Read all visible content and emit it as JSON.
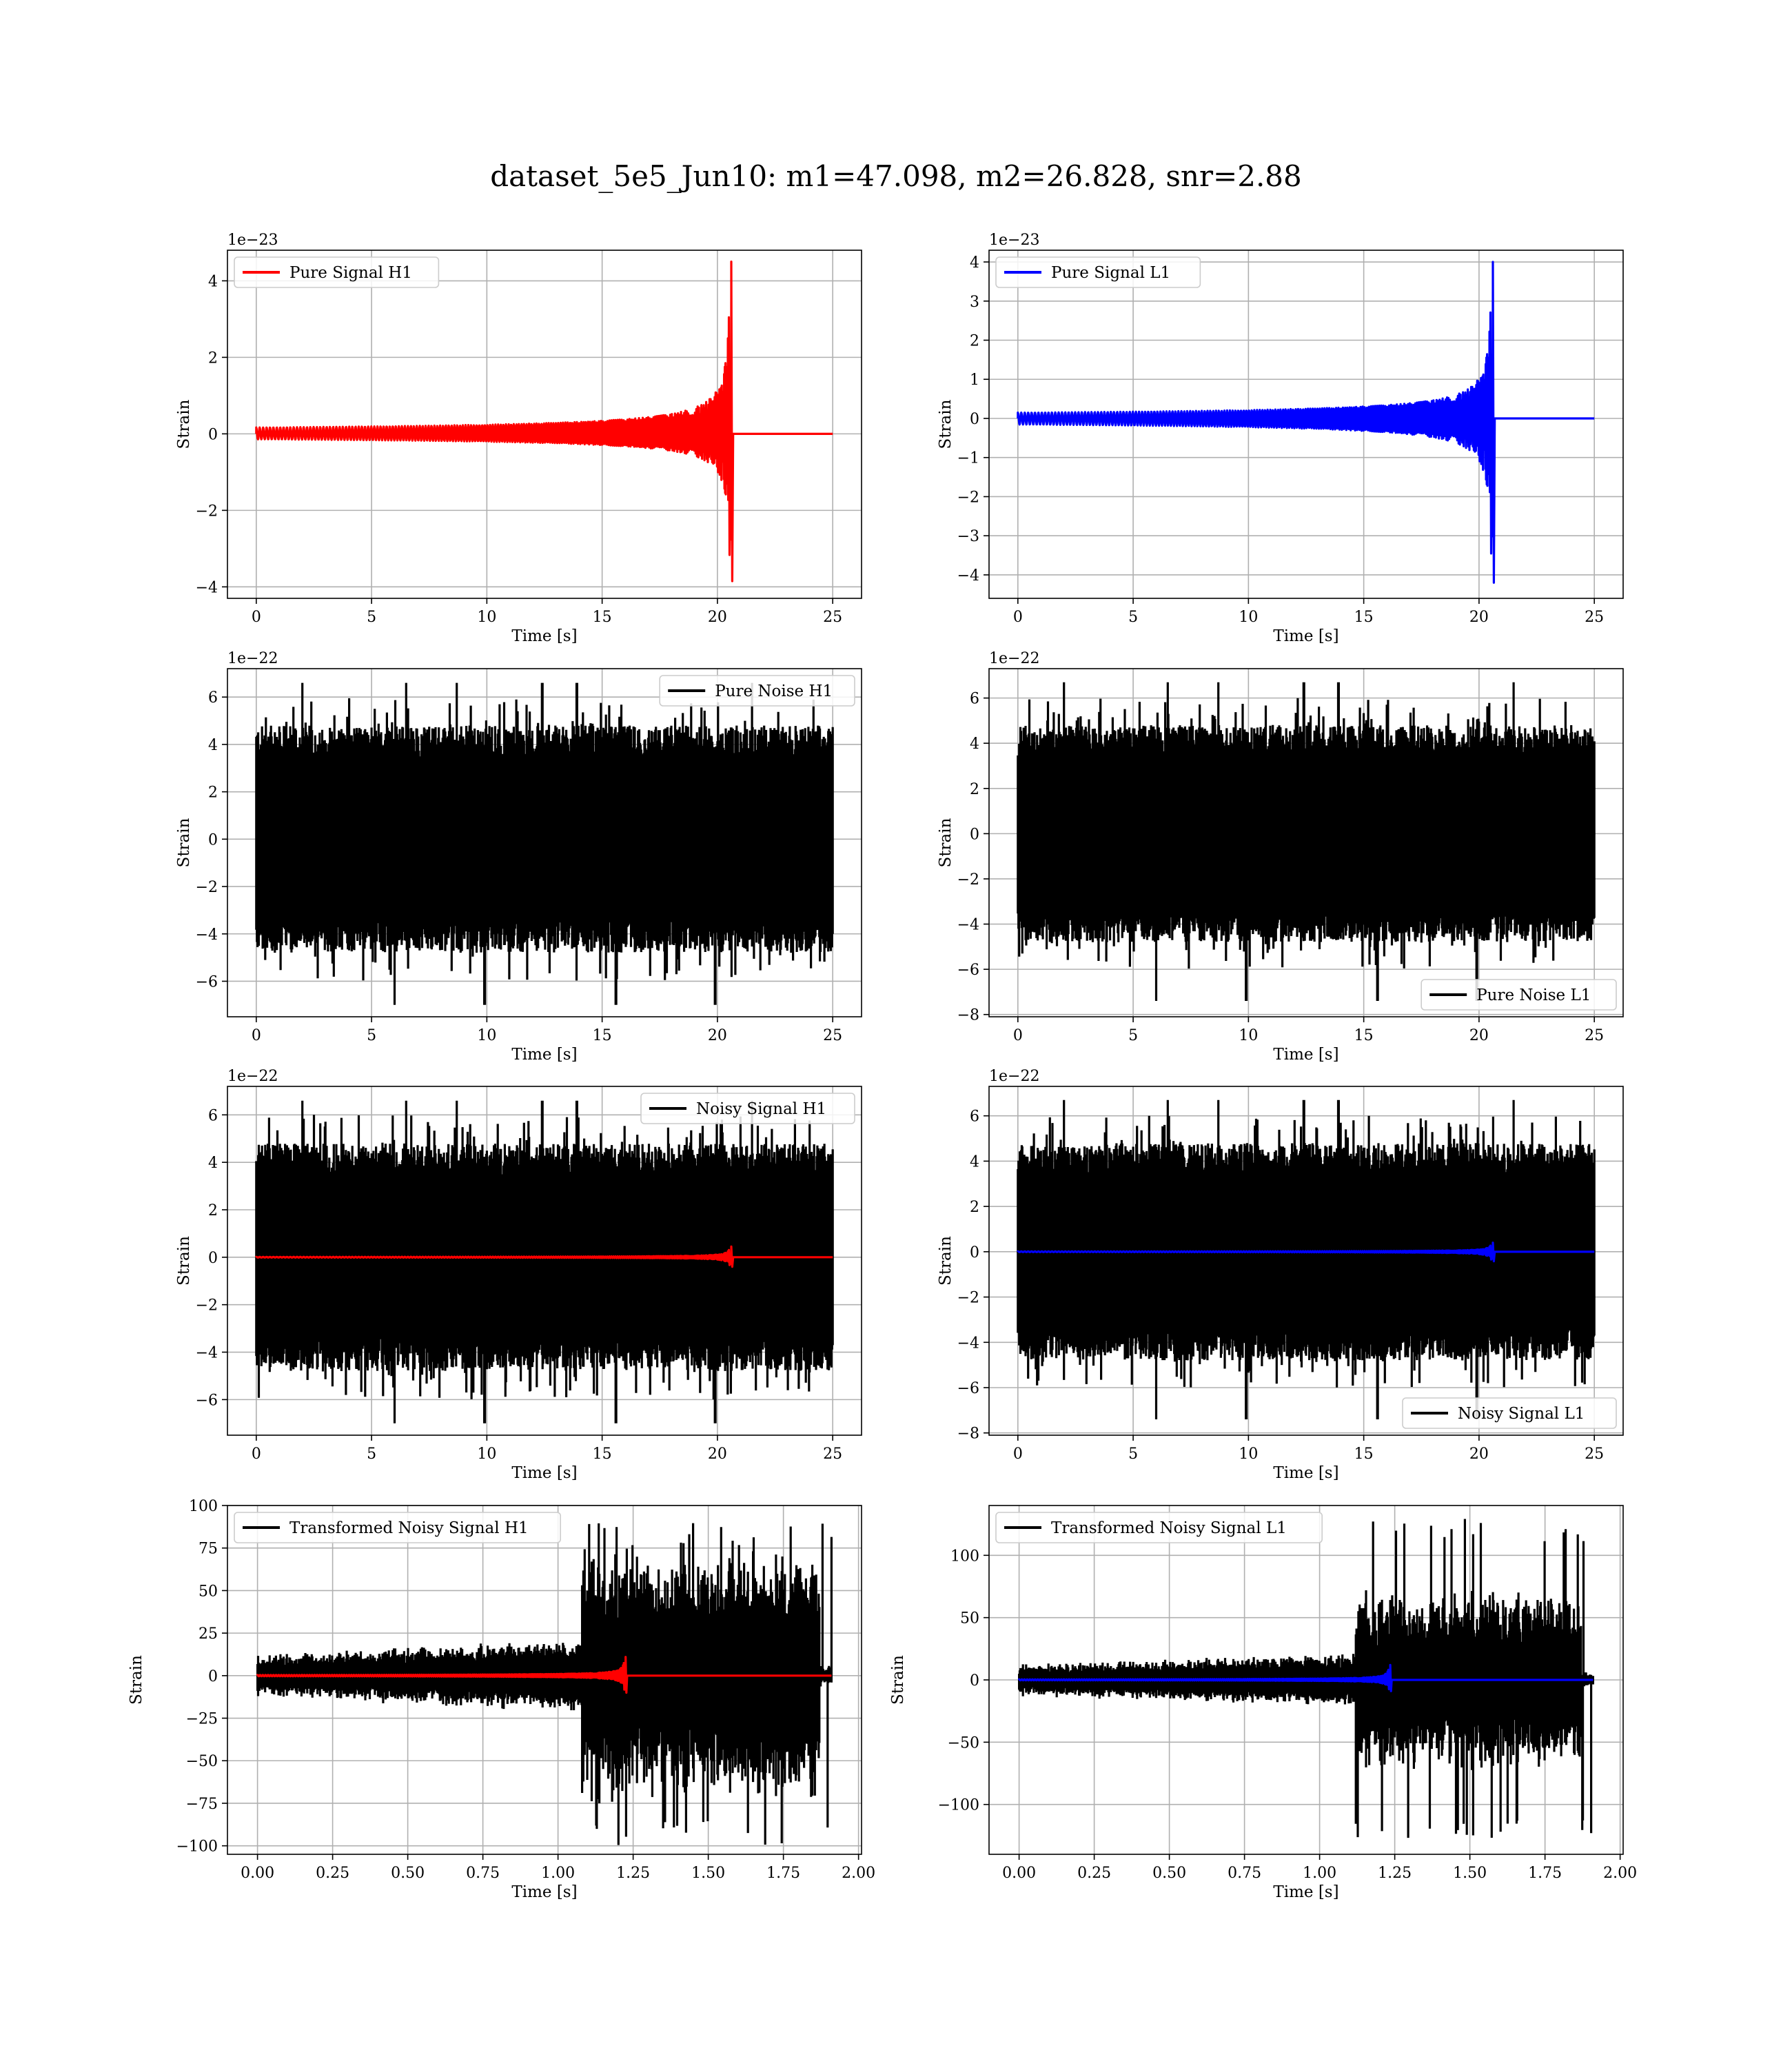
{
  "figure_title": "dataset_5e5_Jun10: m1=47.098, m2=26.828, snr=2.88",
  "chart_data": [
    {
      "type": "line",
      "id": "pure-signal-h1",
      "xlabel": "Time [s]",
      "ylabel": "Strain",
      "offset_text": "1e−23",
      "xlim": [
        -1.25,
        26.25
      ],
      "ylim": [
        -4.3,
        4.8
      ],
      "xticks": [
        0,
        5,
        10,
        15,
        20,
        25
      ],
      "xtick_labels": [
        "0",
        "5",
        "10",
        "15",
        "20",
        "25"
      ],
      "yticks": [
        -4,
        -2,
        0,
        2,
        4
      ],
      "ytick_labels": [
        "−4",
        "−2",
        "0",
        "2",
        "4"
      ],
      "grid": true,
      "legend": {
        "placement": "upper left"
      },
      "series": [
        {
          "name": "Pure Signal H1",
          "color": "#ff0000",
          "kind": "chirp",
          "t_start": 0,
          "t_end": 25,
          "t_merge": 20.6,
          "peak_pos": 4.5,
          "peak_neg": -3.85
        }
      ]
    },
    {
      "type": "line",
      "id": "pure-signal-l1",
      "xlabel": "Time [s]",
      "ylabel": "Strain",
      "offset_text": "1e−23",
      "xlim": [
        -1.25,
        26.25
      ],
      "ylim": [
        -4.6,
        4.3
      ],
      "xticks": [
        0,
        5,
        10,
        15,
        20,
        25
      ],
      "xtick_labels": [
        "0",
        "5",
        "10",
        "15",
        "20",
        "25"
      ],
      "yticks": [
        -4,
        -3,
        -2,
        -1,
        0,
        1,
        2,
        3,
        4
      ],
      "ytick_labels": [
        "−4",
        "−3",
        "−2",
        "−1",
        "0",
        "1",
        "2",
        "3",
        "4"
      ],
      "grid": true,
      "legend": {
        "placement": "upper left"
      },
      "series": [
        {
          "name": "Pure Signal L1",
          "color": "#0000ff",
          "kind": "chirp",
          "t_start": 0,
          "t_end": 25,
          "t_merge": 20.6,
          "peak_pos": 4.0,
          "peak_neg": -4.2
        }
      ]
    },
    {
      "type": "line",
      "id": "pure-noise-h1",
      "xlabel": "Time [s]",
      "ylabel": "Strain",
      "offset_text": "1e−22",
      "xlim": [
        -1.25,
        26.25
      ],
      "ylim": [
        -7.5,
        7.2
      ],
      "xticks": [
        0,
        5,
        10,
        15,
        20,
        25
      ],
      "xtick_labels": [
        "0",
        "5",
        "10",
        "15",
        "20",
        "25"
      ],
      "yticks": [
        -6,
        -4,
        -2,
        0,
        2,
        4,
        6
      ],
      "ytick_labels": [
        "−6",
        "−4",
        "−2",
        "0",
        "2",
        "4",
        "6"
      ],
      "grid": true,
      "legend": {
        "placement": "upper right"
      },
      "series": [
        {
          "name": "Pure Noise H1",
          "color": "#000000",
          "kind": "noise",
          "t_start": 0,
          "t_end": 25,
          "max": 6.6,
          "min": -7.0
        }
      ]
    },
    {
      "type": "line",
      "id": "pure-noise-l1",
      "xlabel": "Time [s]",
      "ylabel": "Strain",
      "offset_text": "1e−22",
      "xlim": [
        -1.25,
        26.25
      ],
      "ylim": [
        -8.1,
        7.3
      ],
      "xticks": [
        0,
        5,
        10,
        15,
        20,
        25
      ],
      "xtick_labels": [
        "0",
        "5",
        "10",
        "15",
        "20",
        "25"
      ],
      "yticks": [
        -8,
        -6,
        -4,
        -2,
        0,
        2,
        4,
        6
      ],
      "ytick_labels": [
        "−8",
        "−6",
        "−4",
        "−2",
        "0",
        "2",
        "4",
        "6"
      ],
      "grid": true,
      "legend": {
        "placement": "lower right"
      },
      "series": [
        {
          "name": "Pure Noise L1",
          "color": "#000000",
          "kind": "noise",
          "t_start": 0,
          "t_end": 25,
          "max": 6.7,
          "min": -7.4
        }
      ]
    },
    {
      "type": "line",
      "id": "noisy-signal-h1",
      "xlabel": "Time [s]",
      "ylabel": "Strain",
      "offset_text": "1e−22",
      "xlim": [
        -1.25,
        26.25
      ],
      "ylim": [
        -7.5,
        7.2
      ],
      "xticks": [
        0,
        5,
        10,
        15,
        20,
        25
      ],
      "xtick_labels": [
        "0",
        "5",
        "10",
        "15",
        "20",
        "25"
      ],
      "yticks": [
        -6,
        -4,
        -2,
        0,
        2,
        4,
        6
      ],
      "ytick_labels": [
        "−6",
        "−4",
        "−2",
        "0",
        "2",
        "4",
        "6"
      ],
      "grid": true,
      "legend": {
        "placement": "upper right"
      },
      "series": [
        {
          "name": "Noisy Signal H1",
          "color": "#000000",
          "kind": "noise",
          "t_start": 0,
          "t_end": 25,
          "max": 6.6,
          "min": -7.0
        },
        {
          "color": "#ff0000",
          "kind": "chirp",
          "t_start": 0,
          "t_end": 25,
          "t_merge": 20.6,
          "peak_pos": 0.45,
          "peak_neg": -0.4
        }
      ]
    },
    {
      "type": "line",
      "id": "noisy-signal-l1",
      "xlabel": "Time [s]",
      "ylabel": "Strain",
      "offset_text": "1e−22",
      "xlim": [
        -1.25,
        26.25
      ],
      "ylim": [
        -8.1,
        7.3
      ],
      "xticks": [
        0,
        5,
        10,
        15,
        20,
        25
      ],
      "xtick_labels": [
        "0",
        "5",
        "10",
        "15",
        "20",
        "25"
      ],
      "yticks": [
        -8,
        -6,
        -4,
        -2,
        0,
        2,
        4,
        6
      ],
      "ytick_labels": [
        "−8",
        "−6",
        "−4",
        "−2",
        "0",
        "2",
        "4",
        "6"
      ],
      "grid": true,
      "legend": {
        "placement": "lower right"
      },
      "series": [
        {
          "name": "Noisy Signal L1",
          "color": "#000000",
          "kind": "noise",
          "t_start": 0,
          "t_end": 25,
          "max": 6.7,
          "min": -7.4
        },
        {
          "color": "#0000ff",
          "kind": "chirp",
          "t_start": 0,
          "t_end": 25,
          "t_merge": 20.6,
          "peak_pos": 0.4,
          "peak_neg": -0.42
        }
      ]
    },
    {
      "type": "line",
      "id": "transformed-noisy-signal-h1",
      "xlabel": "Time [s]",
      "ylabel": "Strain",
      "offset_text": "",
      "xlim": [
        -0.1,
        2.01
      ],
      "ylim": [
        -105,
        100
      ],
      "xticks": [
        0,
        0.25,
        0.5,
        0.75,
        1.0,
        1.25,
        1.5,
        1.75,
        2.0
      ],
      "xtick_labels": [
        "0.00",
        "0.25",
        "0.50",
        "0.75",
        "1.00",
        "1.25",
        "1.50",
        "1.75",
        "2.00"
      ],
      "yticks": [
        -100,
        -75,
        -50,
        -25,
        0,
        25,
        50,
        75,
        100
      ],
      "ytick_labels": [
        "−100",
        "−75",
        "−50",
        "−25",
        "0",
        "25",
        "50",
        "75",
        "100"
      ],
      "grid": true,
      "legend": {
        "placement": "upper left"
      },
      "series": [
        {
          "name": "Transformed Noisy Signal H1",
          "color": "#000000",
          "kind": "transformed",
          "t_start": 0,
          "t_end": 1.91,
          "t_jump": 1.08,
          "t_drop": 1.87,
          "max": 90,
          "min": -100
        },
        {
          "color": "#ff0000",
          "kind": "chirp",
          "t_start": 0,
          "t_end": 1.91,
          "t_merge": 1.225,
          "peak_pos": 11,
          "peak_neg": -10
        }
      ]
    },
    {
      "type": "line",
      "id": "transformed-noisy-signal-l1",
      "xlabel": "Time [s]",
      "ylabel": "Strain",
      "offset_text": "",
      "xlim": [
        -0.1,
        2.01
      ],
      "ylim": [
        -140,
        140
      ],
      "xticks": [
        0,
        0.25,
        0.5,
        0.75,
        1.0,
        1.25,
        1.5,
        1.75,
        2.0
      ],
      "xtick_labels": [
        "0.00",
        "0.25",
        "0.50",
        "0.75",
        "1.00",
        "1.25",
        "1.50",
        "1.75",
        "2.00"
      ],
      "yticks": [
        -100,
        -50,
        0,
        50,
        100
      ],
      "ytick_labels": [
        "−100",
        "−50",
        "0",
        "50",
        "100"
      ],
      "grid": true,
      "legend": {
        "placement": "upper left"
      },
      "series": [
        {
          "name": "Transformed Noisy Signal L1",
          "color": "#000000",
          "kind": "transformed",
          "t_start": 0,
          "t_end": 1.91,
          "t_jump": 1.12,
          "t_drop": 1.87,
          "max": 130,
          "min": -128
        },
        {
          "color": "#0000ff",
          "kind": "chirp",
          "t_start": 0,
          "t_end": 1.91,
          "t_merge": 1.235,
          "peak_pos": 12,
          "peak_neg": -9
        }
      ]
    }
  ]
}
